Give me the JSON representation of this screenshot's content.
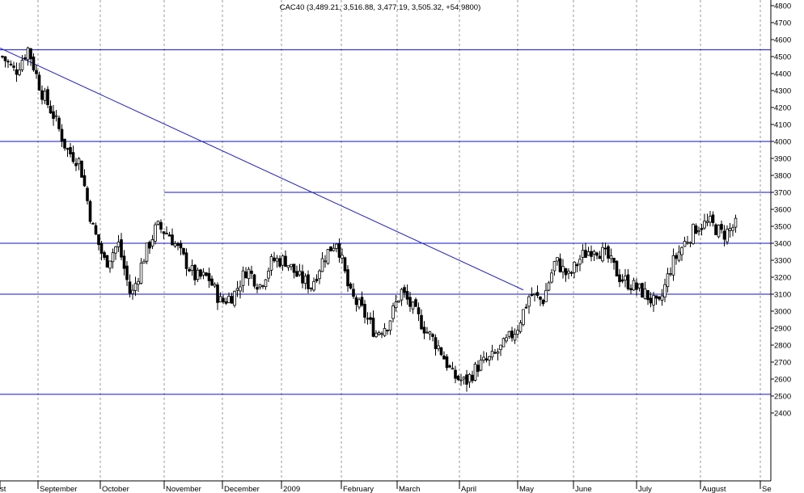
{
  "chart_data": {
    "type": "candlestick",
    "title": "CAC40 (3,489.21, 3,516.88, 3,477.19, 3,505.32, +54.9800)",
    "instrument": "CAC40",
    "last_bar": {
      "open": 3489.21,
      "high": 3516.88,
      "low": 3477.19,
      "close": 3505.32,
      "change": 54.98
    },
    "y_axis": {
      "side": "right",
      "range": [
        2300,
        4800
      ],
      "ticks": [
        2400,
        2500,
        2600,
        2700,
        2800,
        2900,
        3000,
        3100,
        3200,
        3300,
        3400,
        3500,
        3600,
        3700,
        3800,
        3900,
        4000,
        4100,
        4200,
        4300,
        4400,
        4500,
        4600,
        4700,
        4800
      ],
      "grid": false
    },
    "x_axis": {
      "labels": [
        "st",
        "September",
        "October",
        "November",
        "December",
        "2009",
        "February",
        "March",
        "April",
        "May",
        "June",
        "July",
        "August",
        "Se"
      ],
      "grid": "dashed vertical lines at month boundaries"
    },
    "horizontal_levels": [
      4540,
      4000,
      3400,
      3100,
      2510
    ],
    "short_level": {
      "value": 3700,
      "from_month": "November"
    },
    "trendline": {
      "from": {
        "month": "August 2008",
        "value": 4550
      },
      "to": {
        "month": "May 2009",
        "value": 3125
      }
    },
    "series_sketch": [
      4500,
      4410,
      4550,
      4300,
      4150,
      3950,
      3880,
      3500,
      3280,
      3400,
      3080,
      3320,
      3500,
      3450,
      3320,
      3200,
      3200,
      3050,
      3100,
      3250,
      3150,
      3300,
      3300,
      3200,
      3150,
      3320,
      3420,
      3100,
      3000,
      2870,
      2930,
      3120,
      3000,
      2880,
      2780,
      2620,
      2580,
      2680,
      2720,
      2800,
      2900,
      3100,
      3060,
      3300,
      3200,
      3320,
      3380,
      3320,
      3200,
      3150,
      3100,
      3020,
      3270,
      3400,
      3500,
      3520,
      3450,
      3505
    ],
    "colors": {
      "level_lines": "#1010cc",
      "trendline": "#2020c0",
      "candle": "#000000",
      "grid": "#999999",
      "axis_text": "#000000",
      "background": "#ffffff"
    }
  }
}
